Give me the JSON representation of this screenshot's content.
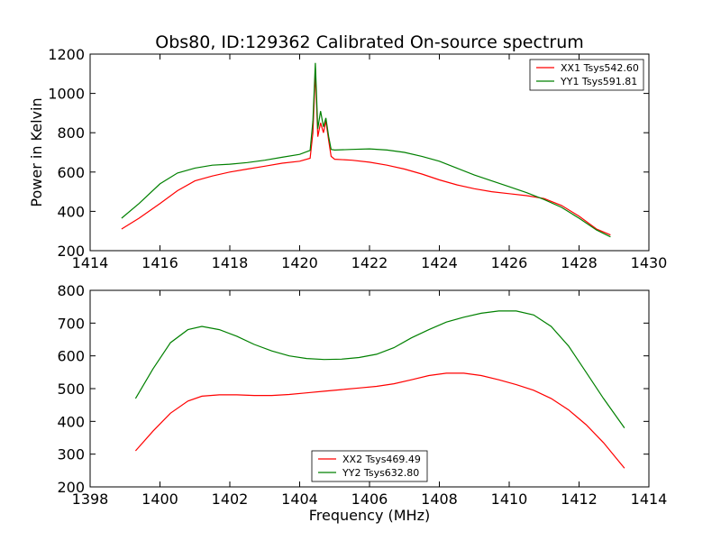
{
  "figure": {
    "title": "Obs80, ID:129362 Calibrated On-source spectrum",
    "xlabel": "Frequency (MHz)",
    "ylabel_top": "Power in Kelvin"
  },
  "colors": {
    "red": "#ff0000",
    "green": "#008000"
  },
  "chart_data": [
    {
      "type": "line",
      "title": "Obs80, ID:129362 Calibrated On-source spectrum",
      "xlabel": "",
      "ylabel": "Power in Kelvin",
      "xlim": [
        1414,
        1430
      ],
      "ylim": [
        200,
        1200
      ],
      "xticks": [
        1414,
        1416,
        1418,
        1420,
        1422,
        1424,
        1426,
        1428,
        1430
      ],
      "yticks": [
        200,
        400,
        600,
        800,
        1000,
        1200
      ],
      "grid": false,
      "legend_position": "top-right",
      "series": [
        {
          "name": "XX1 Tsys542.60",
          "color": "#ff0000",
          "x": [
            1414.9,
            1415.4,
            1416.0,
            1416.5,
            1417.0,
            1417.5,
            1418.0,
            1418.5,
            1419.0,
            1419.5,
            1420.0,
            1420.3,
            1420.38,
            1420.45,
            1420.52,
            1420.6,
            1420.68,
            1420.75,
            1420.83,
            1420.9,
            1421.0,
            1421.5,
            1422.0,
            1422.5,
            1423.0,
            1423.5,
            1424.0,
            1424.5,
            1425.0,
            1425.5,
            1426.0,
            1426.5,
            1427.0,
            1427.5,
            1428.0,
            1428.5,
            1428.9
          ],
          "y": [
            310,
            365,
            440,
            505,
            555,
            580,
            600,
            615,
            630,
            645,
            655,
            670,
            800,
            1110,
            780,
            850,
            800,
            860,
            760,
            680,
            665,
            660,
            650,
            635,
            615,
            590,
            560,
            535,
            515,
            500,
            490,
            480,
            465,
            430,
            375,
            310,
            280
          ]
        },
        {
          "name": "YY1 Tsys591.81",
          "color": "#008000",
          "x": [
            1414.9,
            1415.4,
            1416.0,
            1416.5,
            1417.0,
            1417.5,
            1418.0,
            1418.5,
            1419.0,
            1419.5,
            1420.0,
            1420.3,
            1420.38,
            1420.45,
            1420.52,
            1420.6,
            1420.68,
            1420.75,
            1420.83,
            1420.9,
            1421.0,
            1421.5,
            1422.0,
            1422.5,
            1423.0,
            1423.5,
            1424.0,
            1424.5,
            1425.0,
            1425.5,
            1426.0,
            1426.5,
            1427.0,
            1427.5,
            1428.0,
            1428.5,
            1428.9
          ],
          "y": [
            365,
            440,
            540,
            595,
            620,
            635,
            640,
            648,
            660,
            675,
            690,
            710,
            860,
            1155,
            820,
            910,
            830,
            875,
            780,
            715,
            712,
            715,
            718,
            712,
            700,
            680,
            655,
            620,
            585,
            555,
            525,
            495,
            460,
            420,
            365,
            305,
            270
          ]
        }
      ]
    },
    {
      "type": "line",
      "title": "",
      "xlabel": "Frequency (MHz)",
      "ylabel": "",
      "xlim": [
        1398,
        1414
      ],
      "ylim": [
        200,
        800
      ],
      "xticks": [
        1398,
        1400,
        1402,
        1404,
        1406,
        1408,
        1410,
        1412,
        1414
      ],
      "yticks": [
        200,
        300,
        400,
        500,
        600,
        700,
        800
      ],
      "grid": false,
      "legend_position": "bottom-center",
      "series": [
        {
          "name": "XX2 Tsys469.49",
          "color": "#ff0000",
          "x": [
            1399.3,
            1399.8,
            1400.3,
            1400.8,
            1401.2,
            1401.7,
            1402.2,
            1402.7,
            1403.2,
            1403.7,
            1404.2,
            1404.7,
            1405.2,
            1405.7,
            1406.2,
            1406.7,
            1407.2,
            1407.7,
            1408.2,
            1408.7,
            1409.2,
            1409.7,
            1410.2,
            1410.7,
            1411.2,
            1411.7,
            1412.2,
            1412.7,
            1413.3
          ],
          "y": [
            310,
            370,
            425,
            462,
            477,
            481,
            481,
            479,
            479,
            482,
            487,
            492,
            497,
            502,
            507,
            515,
            527,
            540,
            547,
            547,
            540,
            527,
            512,
            495,
            470,
            435,
            390,
            335,
            257
          ]
        },
        {
          "name": "YY2 Tsys632.80",
          "color": "#008000",
          "x": [
            1399.3,
            1399.8,
            1400.3,
            1400.8,
            1401.2,
            1401.7,
            1402.2,
            1402.7,
            1403.2,
            1403.7,
            1404.2,
            1404.7,
            1405.2,
            1405.7,
            1406.2,
            1406.7,
            1407.2,
            1407.7,
            1408.2,
            1408.7,
            1409.2,
            1409.7,
            1410.2,
            1410.7,
            1411.2,
            1411.7,
            1412.2,
            1412.7,
            1413.3
          ],
          "y": [
            470,
            560,
            640,
            680,
            690,
            680,
            660,
            635,
            615,
            600,
            592,
            589,
            590,
            595,
            605,
            625,
            655,
            680,
            703,
            718,
            730,
            737,
            737,
            725,
            690,
            630,
            550,
            470,
            380
          ]
        }
      ]
    }
  ]
}
